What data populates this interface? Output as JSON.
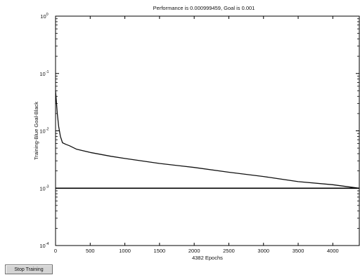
{
  "window": {
    "stop_button_label": "Stop Training"
  },
  "chart_data": {
    "type": "line",
    "title": "Performance is 0.000999459, Goal is 0.001",
    "xlabel": "4382 Epochs",
    "ylabel": "Training-Blue  Goal-Black",
    "xlim": [
      0,
      4382
    ],
    "ylim": [
      0.0001,
      1
    ],
    "yscale": "log",
    "grid": false,
    "x_ticks": [
      0,
      500,
      1000,
      1500,
      2000,
      2500,
      3000,
      3500,
      4000
    ],
    "x_tick_labels": [
      "0",
      "500",
      "1000",
      "1500",
      "2000",
      "2500",
      "3000",
      "3500",
      "4000"
    ],
    "y_ticks": [
      0.0001,
      0.001,
      0.01,
      0.1,
      1
    ],
    "y_tick_labels": [
      {
        "base": "10",
        "exp": "-4"
      },
      {
        "base": "10",
        "exp": "-3"
      },
      {
        "base": "10",
        "exp": "-2"
      },
      {
        "base": "10",
        "exp": "-1"
      },
      {
        "base": "10",
        "exp": "0"
      }
    ],
    "series": [
      {
        "color": "#111111",
        "x": [
          0,
          10,
          25,
          45,
          70,
          100,
          150,
          200,
          300,
          500,
          800,
          1000,
          1500,
          2000,
          2500,
          3000,
          3500,
          4000,
          4382
        ],
        "y": [
          0.05,
          0.035,
          0.02,
          0.012,
          0.008,
          0.0062,
          0.0058,
          0.0055,
          0.0048,
          0.0042,
          0.0036,
          0.0033,
          0.0027,
          0.0023,
          0.0019,
          0.0016,
          0.0013,
          0.00115,
          0.000999459
        ]
      },
      {
        "color": "#000000",
        "x": [
          0,
          4382
        ],
        "y": [
          0.001,
          0.001
        ]
      }
    ]
  }
}
